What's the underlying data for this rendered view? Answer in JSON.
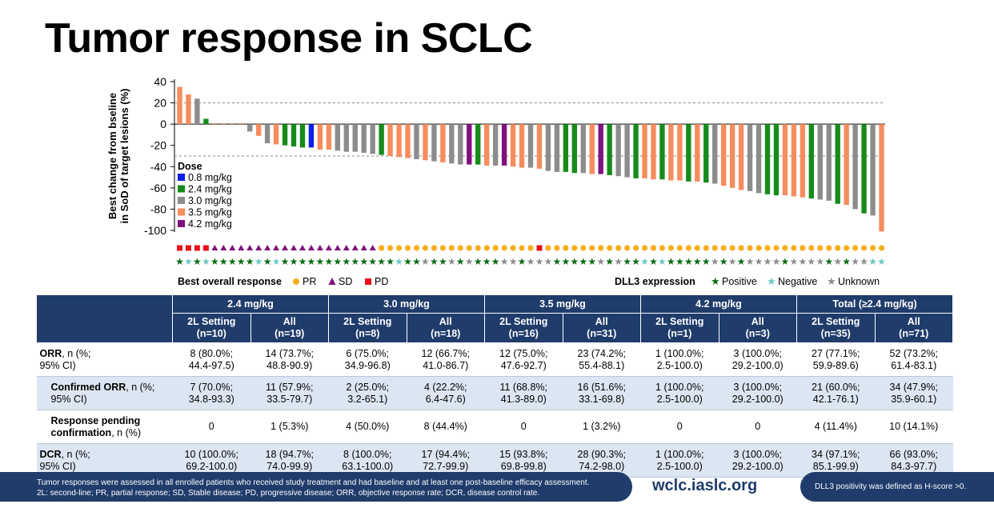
{
  "title": "Tumor response in SCLC",
  "chart_data": {
    "type": "bar",
    "ylabel": "Best change from bseline\nin SoD of target lesions (%)",
    "ylim": [
      -100,
      40
    ],
    "yticks": [
      40,
      20,
      0,
      -20,
      -40,
      -60,
      -80,
      -100
    ],
    "reference_lines": [
      20,
      -30
    ],
    "dose_legend_title": "Dose",
    "dose_legend": [
      {
        "key": "0.8",
        "label": "0.8 mg/kg",
        "color": "#0b1fe8"
      },
      {
        "key": "2.4",
        "label": "2.4 mg/kg",
        "color": "#168b1a"
      },
      {
        "key": "3.0",
        "label": "3.0 mg/kg",
        "color": "#8c8c8c"
      },
      {
        "key": "3.5",
        "label": "3.5 mg/kg",
        "color": "#f78c5d"
      },
      {
        "key": "4.2",
        "label": "4.2 mg/kg",
        "color": "#7f117f"
      }
    ],
    "values": [
      35,
      28,
      24,
      5,
      -0.5,
      -0.5,
      -0.5,
      -0.5,
      -7,
      -11,
      -18,
      -19,
      -20,
      -21,
      -22,
      -22,
      -24,
      -24,
      -25,
      -26,
      -26,
      -27,
      -28,
      -29,
      -30,
      -31,
      -32,
      -33,
      -34,
      -35,
      -36,
      -37,
      -38,
      -38,
      -38,
      -39,
      -39,
      -39,
      -40,
      -41,
      -41,
      -42,
      -44,
      -45,
      -45,
      -46,
      -46,
      -47,
      -47,
      -48,
      -49,
      -50,
      -51,
      -51,
      -52,
      -52,
      -53,
      -53,
      -54,
      -54,
      -55,
      -56,
      -58,
      -60,
      -62,
      -63,
      -65,
      -66,
      -67,
      -67,
      -68,
      -69,
      -70,
      -71,
      -72,
      -75,
      -76,
      -80,
      -84,
      -86,
      -101
    ],
    "dose": [
      "3.5",
      "3.5",
      "3.0",
      "2.4",
      "3.5",
      "3.5",
      "3.5",
      "3.5",
      "3.0",
      "3.5",
      "3.0",
      "3.5",
      "2.4",
      "2.4",
      "2.4",
      "0.8",
      "3.5",
      "3.5",
      "3.0",
      "3.0",
      "3.0",
      "3.0",
      "3.0",
      "2.4",
      "3.5",
      "3.5",
      "3.5",
      "3.0",
      "3.5",
      "3.0",
      "3.5",
      "3.0",
      "3.0",
      "4.2",
      "2.4",
      "3.5",
      "3.0",
      "4.2",
      "3.5",
      "3.5",
      "3.0",
      "3.5",
      "3.0",
      "3.0",
      "2.4",
      "2.4",
      "3.0",
      "3.5",
      "4.2",
      "2.4",
      "3.0",
      "3.0",
      "2.4",
      "3.5",
      "3.5",
      "2.4",
      "3.5",
      "3.5",
      "2.4",
      "3.5",
      "2.4",
      "3.0",
      "3.5",
      "3.5",
      "3.5",
      "3.0",
      "3.0",
      "2.4",
      "2.4",
      "3.5",
      "3.5",
      "3.5",
      "2.4",
      "3.0",
      "3.0",
      "2.4",
      "3.5",
      "3.0",
      "2.4",
      "3.0",
      "3.5"
    ],
    "best_overall_response": [
      "PD",
      "PD",
      "PD",
      "PD",
      "SD",
      "SD",
      "SD",
      "SD",
      "SD",
      "SD",
      "SD",
      "SD",
      "SD",
      "SD",
      "SD",
      "SD",
      "SD",
      "SD",
      "SD",
      "SD",
      "SD",
      "SD",
      "SD",
      "PR",
      "PR",
      "PR",
      "PR",
      "PR",
      "PR",
      "PR",
      "PR",
      "PR",
      "PR",
      "PR",
      "PR",
      "PR",
      "PR",
      "PR",
      "PR",
      "PR",
      "PR",
      "PD",
      "PR",
      "PR",
      "PR",
      "PR",
      "PR",
      "PR",
      "PR",
      "PR",
      "PR",
      "PR",
      "PR",
      "PR",
      "PR",
      "PR",
      "PR",
      "PR",
      "PR",
      "PR",
      "PR",
      "PR",
      "PR",
      "PR",
      "PR",
      "PR",
      "PR",
      "PR",
      "PR",
      "PR",
      "PR",
      "PR",
      "PR",
      "PR",
      "PR",
      "PR",
      "PR",
      "PR",
      "PR",
      "PR",
      "PR"
    ],
    "dll3_expression": [
      "Positive",
      "Negative",
      "Positive",
      "Negative",
      "Positive",
      "Positive",
      "Positive",
      "Positive",
      "Positive",
      "Negative",
      "Positive",
      "Negative",
      "Positive",
      "Positive",
      "Positive",
      "Positive",
      "Positive",
      "Positive",
      "Positive",
      "Positive",
      "Positive",
      "Positive",
      "Positive",
      "Positive",
      "Positive",
      "Negative",
      "Positive",
      "Positive",
      "Unknown",
      "Positive",
      "Positive",
      "Unknown",
      "Positive",
      "Unknown",
      "Positive",
      "Positive",
      "Positive",
      "Unknown",
      "Unknown",
      "Positive",
      "Unknown",
      "Unknown",
      "Unknown",
      "Positive",
      "Positive",
      "Positive",
      "Positive",
      "Positive",
      "Unknown",
      "Positive",
      "Unknown",
      "Positive",
      "Positive",
      "Negative",
      "Positive",
      "Negative",
      "Positive",
      "Positive",
      "Positive",
      "Positive",
      "Positive",
      "Unknown",
      "Positive",
      "Unknown",
      "Positive",
      "Unknown",
      "Unknown",
      "Unknown",
      "Unknown",
      "Positive",
      "Unknown",
      "Unknown",
      "Unknown",
      "Unknown",
      "Positive",
      "Unknown",
      "Positive",
      "Unknown",
      "Unknown",
      "Negative",
      "Negative"
    ],
    "response_legend_title": "Best overall response",
    "response_legend": [
      {
        "key": "PR",
        "label": "PR",
        "color": "#f7ac1c"
      },
      {
        "key": "SD",
        "label": "SD",
        "color": "#7f117f"
      },
      {
        "key": "PD",
        "label": "PD",
        "color": "#e8121c"
      }
    ],
    "dll3_legend_title": "DLL3 expression",
    "dll3_legend": [
      {
        "key": "Positive",
        "label": "Positive",
        "color": "#0c6a13"
      },
      {
        "key": "Negative",
        "label": "Negative",
        "color": "#6ec7c2"
      },
      {
        "key": "Unknown",
        "label": "Unknown",
        "color": "#8c8c8c"
      }
    ]
  },
  "table": {
    "groups": [
      "2.4 mg/kg",
      "3.0 mg/kg",
      "3.5 mg/kg",
      "4.2 mg/kg",
      "Total (≥2.4 mg/kg)"
    ],
    "subcols": [
      [
        "2L Setting",
        "(n=10)"
      ],
      [
        "All",
        "(n=19)"
      ],
      [
        "2L Setting",
        "(n=8)"
      ],
      [
        "All",
        "(n=18)"
      ],
      [
        "2L Setting",
        "(n=16)"
      ],
      [
        "All",
        "(n=31)"
      ],
      [
        "2L Setting",
        "(n=1)"
      ],
      [
        "All",
        "(n=3)"
      ],
      [
        "2L Setting",
        "(n=35)"
      ],
      [
        "All",
        "(n=71)"
      ]
    ],
    "rows": [
      {
        "bold": "ORR",
        "rest": ", n (%;",
        "line2": "95% CI)",
        "cells": [
          [
            "8 (80.0%;",
            "44.4-97.5)"
          ],
          [
            "14 (73.7%;",
            "48.8-90.9)"
          ],
          [
            "6 (75.0%;",
            "34.9-96.8)"
          ],
          [
            "12 (66.7%;",
            "41.0-86.7)"
          ],
          [
            "12 (75.0%;",
            "47.6-92.7)"
          ],
          [
            "23 (74.2%;",
            "55.4-88.1)"
          ],
          [
            "1 (100.0%;",
            "2.5-100.0)"
          ],
          [
            "3 (100.0%;",
            "29.2-100.0)"
          ],
          [
            "27 (77.1%;",
            "59.9-89.6)"
          ],
          [
            "52 (73.2%;",
            "61.4-83.1)"
          ]
        ]
      },
      {
        "bold": "Confirmed ORR",
        "rest": ", n (%;",
        "line2": "95% CI)",
        "cells": [
          [
            "7 (70.0%;",
            "34.8-93.3)"
          ],
          [
            "11 (57.9%;",
            "33.5-79.7)"
          ],
          [
            "2 (25.0%;",
            "3.2-65.1)"
          ],
          [
            "4 (22.2%;",
            "6.4-47.6)"
          ],
          [
            "11 (68.8%;",
            "41.3-89.0)"
          ],
          [
            "16 (51.6%;",
            "33.1-69.8)"
          ],
          [
            "1 (100.0%;",
            "2.5-100.0)"
          ],
          [
            "3 (100.0%;",
            "29.2-100.0)"
          ],
          [
            "21 (60.0%;",
            "42.1-76.1)"
          ],
          [
            "34 (47.9%;",
            "35.9-60.1)"
          ]
        ]
      },
      {
        "bold": "Response pending",
        "rest": "",
        "line2b": "confirmation",
        "line2": ", n (%)",
        "cells": [
          [
            "0",
            ""
          ],
          [
            "1 (5.3%)",
            ""
          ],
          [
            "4 (50.0%)",
            ""
          ],
          [
            "8 (44.4%)",
            ""
          ],
          [
            "0",
            ""
          ],
          [
            "1 (3.2%)",
            ""
          ],
          [
            "0",
            ""
          ],
          [
            "0",
            ""
          ],
          [
            "4 (11.4%)",
            ""
          ],
          [
            "10 (14.1%)",
            ""
          ]
        ]
      },
      {
        "bold": "DCR",
        "rest": ", n (%;",
        "line2": "95% CI)",
        "cells": [
          [
            "10 (100.0%;",
            "69.2-100.0)"
          ],
          [
            "18 (94.7%;",
            "74.0-99.9)"
          ],
          [
            "8 (100.0%;",
            "63.1-100.0)"
          ],
          [
            "17 (94.4%;",
            "72.7-99.9)"
          ],
          [
            "15 (93.8%;",
            "69.8-99.8)"
          ],
          [
            "28 (90.3%;",
            "74.2-98.0)"
          ],
          [
            "1 (100.0%;",
            "2.5-100.0)"
          ],
          [
            "3 (100.0%;",
            "29.2-100.0)"
          ],
          [
            "34 (97.1%;",
            "85.1-99.9)"
          ],
          [
            "66 (93.0%;",
            "84.3-97.7)"
          ]
        ]
      }
    ]
  },
  "footer": {
    "note_line1": "Tumor responses were assessed in all enrolled patients who received study treatment and had baseline and at least one post-baseline efficacy assessment.",
    "note_line2": "2L: second-line; PR, partial response; SD, Stable disease; PD, progressive disease; ORR, objective response rate; DCR, disease control rate.",
    "website": "wclc.iaslc.org",
    "dll3_note": "DLL3 positivity was defined as H-score >0."
  }
}
